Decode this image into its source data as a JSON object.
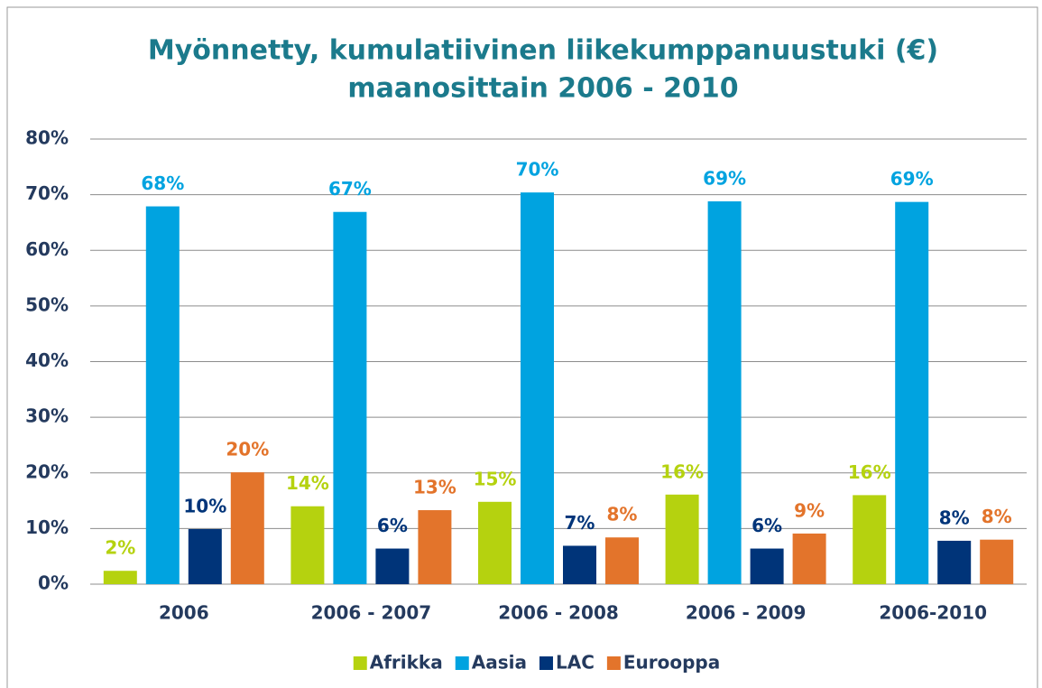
{
  "chart_data": {
    "type": "bar",
    "title": [
      "Myönnetty, kumulatiivinen liikekumppanuustuki (€)",
      "maanosittain 2006 - 2010"
    ],
    "categories": [
      "2006",
      "2006 - 2007",
      "2006 - 2008",
      "2006 - 2009",
      "2006-2010"
    ],
    "series": [
      {
        "name": "Afrikka",
        "color": "#b5d20f",
        "values": [
          2.4,
          14.0,
          14.8,
          16.1,
          16.0
        ],
        "value_labels": [
          "2%",
          "14%",
          "15%",
          "16%",
          "16%"
        ]
      },
      {
        "name": "Aasia",
        "color": "#00a3e0",
        "values": [
          67.9,
          66.9,
          70.4,
          68.8,
          68.7
        ],
        "value_labels": [
          "68%",
          "67%",
          "70%",
          "69%",
          "69%"
        ]
      },
      {
        "name": "LAC",
        "color": "#003479",
        "values": [
          9.9,
          6.4,
          6.9,
          6.4,
          7.8
        ],
        "value_labels": [
          "10%",
          "6%",
          "7%",
          "6%",
          "8%"
        ]
      },
      {
        "name": "Eurooppa",
        "color": "#e3742b",
        "values": [
          20.1,
          13.3,
          8.4,
          9.1,
          8.0
        ],
        "value_labels": [
          "20%",
          "13%",
          "8%",
          "9%",
          "8%"
        ]
      }
    ],
    "ylim": [
      0,
      80
    ],
    "yticks": [
      {
        "value": 0,
        "label": "0%"
      },
      {
        "value": 10,
        "label": "10%"
      },
      {
        "value": 20,
        "label": "20%"
      },
      {
        "value": 30,
        "label": "30%"
      },
      {
        "value": 40,
        "label": "40%"
      },
      {
        "value": 50,
        "label": "50%"
      },
      {
        "value": 60,
        "label": "60%"
      },
      {
        "value": 70,
        "label": "70%"
      },
      {
        "value": 80,
        "label": "80%"
      }
    ],
    "grid": true,
    "legend": "bottom"
  }
}
